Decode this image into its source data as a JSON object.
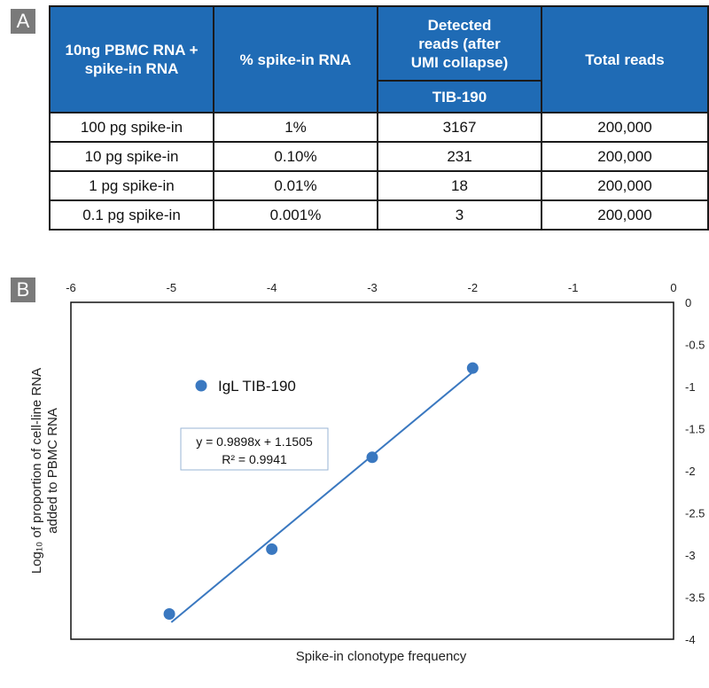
{
  "panels": {
    "a": "A",
    "b": "B"
  },
  "table": {
    "headers": {
      "sample": "10ng PBMC RNA + spike-in RNA",
      "percent": "% spike-in RNA",
      "detected_group": "Detected reads (after UMI collapse)",
      "detected_sub": "TIB-190",
      "total": "Total reads"
    },
    "rows": [
      {
        "sample": "100 pg spike-in",
        "percent": "1%",
        "detected": "3167",
        "total": "200,000"
      },
      {
        "sample": "10 pg spike-in",
        "percent": "0.10%",
        "detected": "231",
        "total": "200,000"
      },
      {
        "sample": "1 pg spike-in",
        "percent": "0.01%",
        "detected": "18",
        "total": "200,000"
      },
      {
        "sample": "0.1 pg spike-in",
        "percent": "0.001%",
        "detected": "3",
        "total": "200,000"
      }
    ]
  },
  "chart_data": {
    "type": "scatter",
    "title": "",
    "xlabel": "Spike-in clonotype frequency",
    "ylabel_line1": "Log₁₀ of proportion of cell-line RNA",
    "ylabel_line2": "added to PBMC RNA",
    "xlim": [
      -6,
      0
    ],
    "ylim": [
      -4,
      0
    ],
    "x_ticks": [
      -6,
      -5,
      -4,
      -3,
      -2,
      -1,
      0
    ],
    "y_ticks": [
      0,
      -0.5,
      -1,
      -1.5,
      -2,
      -2.5,
      -3,
      -3.5,
      -4
    ],
    "x_tick_labels": [
      "-6",
      "-5",
      "-4",
      "-3",
      "-2",
      "-1",
      "0"
    ],
    "y_tick_labels": [
      "0",
      "-0.5",
      "-1",
      "-1.5",
      "-2",
      "-2.5",
      "-3",
      "-3.5",
      "-4"
    ],
    "x_axis_position": "top",
    "y_axis_position": "right",
    "grid": false,
    "legend_position": "top-left",
    "series": [
      {
        "name": "IgL TIB-190",
        "color": "#3a78c0",
        "points": [
          {
            "x": -5.02,
            "y": -3.7
          },
          {
            "x": -4.0,
            "y": -2.93
          },
          {
            "x": -3.0,
            "y": -1.84
          },
          {
            "x": -2.0,
            "y": -0.78
          }
        ]
      }
    ],
    "trendline": {
      "x_range": [
        -5.0,
        -2.0
      ],
      "equation": "y = 0.9898x + 1.1505",
      "r_squared": "R² = 0.9941",
      "slope": 0.9898,
      "intercept": 1.1505
    }
  }
}
